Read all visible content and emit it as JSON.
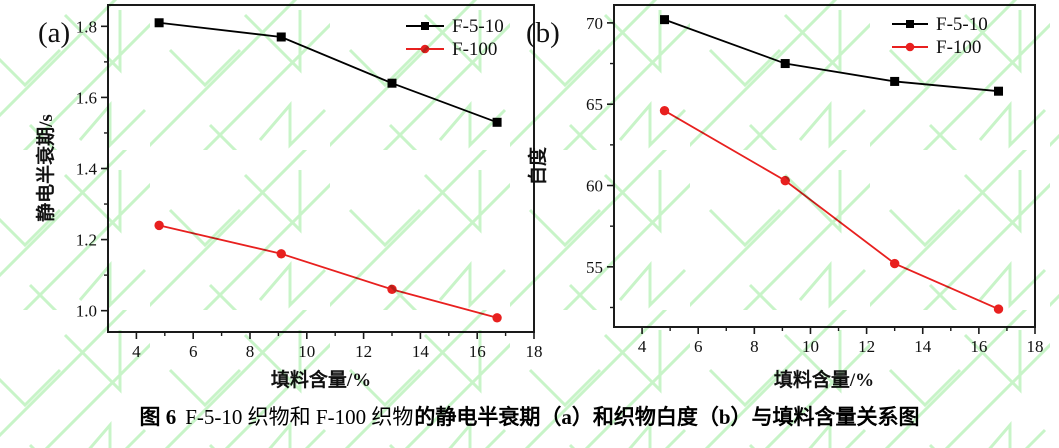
{
  "colors": {
    "series_black": "#000000",
    "series_red": "#e8201f",
    "axis": "#1a1a1a",
    "watermark_green": "#b5f0b5"
  },
  "caption": {
    "fig_label": "图 6",
    "normal_part": "F-5-10 织物和 F-100 织物",
    "bold_part": "的静电半衰期（a）和织物白度（b）与填料含量关系图"
  },
  "chart_data": [
    {
      "type": "line",
      "panel_label": "(a)",
      "xlabel": "填料含量/%",
      "ylabel": "静电半衰期/s",
      "xlim": [
        3,
        18
      ],
      "ylim": [
        0.94,
        1.86
      ],
      "xticks": [
        4,
        6,
        8,
        10,
        12,
        14,
        16,
        18
      ],
      "yticks": [
        1.0,
        1.2,
        1.4,
        1.6,
        1.8
      ],
      "ytick_labels": [
        "1.0",
        "1.2",
        "1.4",
        "1.6",
        "1.8"
      ],
      "xminor_step": 1,
      "yminor_step": 0.1,
      "grid": false,
      "legend_position": "top-right",
      "x": [
        4.8,
        9.1,
        13.0,
        16.7
      ],
      "series": [
        {
          "name": "F-5-10",
          "color": "#000000",
          "marker": "square",
          "values": [
            1.81,
            1.77,
            1.64,
            1.53
          ]
        },
        {
          "name": "F-100",
          "color": "#e8201f",
          "marker": "circle",
          "values": [
            1.24,
            1.16,
            1.06,
            0.98
          ]
        }
      ]
    },
    {
      "type": "line",
      "panel_label": "(b)",
      "xlabel": "填料含量/%",
      "ylabel": "白度",
      "xlim": [
        3,
        18
      ],
      "ylim": [
        51.3,
        71.1
      ],
      "xticks": [
        4,
        6,
        8,
        10,
        12,
        14,
        16,
        18
      ],
      "yticks": [
        55,
        60,
        65,
        70
      ],
      "ytick_labels": [
        "55",
        "60",
        "65",
        "70"
      ],
      "xminor_step": 1,
      "yminor_step": 2.5,
      "grid": false,
      "legend_position": "top-right",
      "x": [
        4.8,
        9.1,
        13.0,
        16.7
      ],
      "series": [
        {
          "name": "F-5-10",
          "color": "#000000",
          "marker": "square",
          "values": [
            70.2,
            67.5,
            66.4,
            65.8
          ]
        },
        {
          "name": "F-100",
          "color": "#e8201f",
          "marker": "circle",
          "values": [
            64.6,
            60.3,
            55.2,
            52.4
          ]
        }
      ]
    }
  ]
}
